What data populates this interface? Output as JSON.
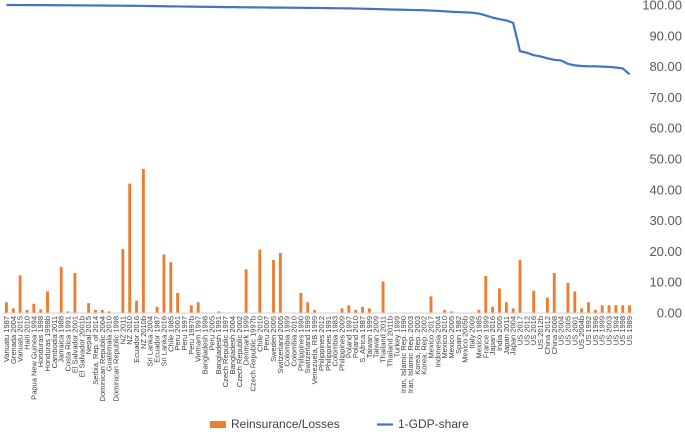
{
  "chart_data": {
    "type": "bar",
    "title": "",
    "xlabel": "",
    "ylabel": "",
    "ylim": [
      0,
      100
    ],
    "yticks": [
      "0.00",
      "10.00",
      "20.00",
      "30.00",
      "40.00",
      "50.00",
      "60.00",
      "70.00",
      "80.00",
      "90.00",
      "100.00"
    ],
    "y_axis_side": "right",
    "grid": false,
    "legend_position": "bottom",
    "series_colors": {
      "bars": "#ED7D31",
      "line": "#4472C4"
    },
    "categories": [
      "Vanuatu 1987",
      "Grenada 2004",
      "Vanuatu 2015",
      "Haiti 2010",
      "Papua New Guinea 1994",
      "Honduras 1998",
      "Honduras 1998b",
      "Cambodia 2011",
      "Jamaica 1988",
      "Costa Rica 1991",
      "El Salvador 2001",
      "El Salvador 2001b",
      "Nepal 2015",
      "Serbia, Rep. of 2014",
      "Dominican Republic 2004",
      "Guatemala 2010",
      "Dominican Republic 1998",
      "NZ 2011",
      "NZ 2010",
      "Ecuador 2016",
      "NZ 2010b",
      "Sri Lanka 2004",
      "Ecuador 1987",
      "Sri Lanka 2016",
      "Chile 1985",
      "Peru 2001",
      "Peru 1997",
      "Peru 1997b",
      "Vietnam 1997",
      "Bangladesh 1998",
      "Peru 2005",
      "Bangladesh 1991",
      "Czech Republic 1997",
      "Bangladesh 2004",
      "Czech Republic 2002",
      "Denmark 1999",
      "Czech Republic 1997b",
      "Chile 2010",
      "Peru 2007",
      "Sweden 2005",
      "Switzerland 2005",
      "Colombia 1999",
      "Colombia 2010",
      "Philippines 1990",
      "Switzerland 1999",
      "Venezuela, RB 1999",
      "Philippines 2012",
      "Philippines 1991",
      "Colombia 1983",
      "Philippines 2009",
      "Poland 1997",
      "Poland 2010",
      "S. Africa 1987",
      "Taiwan 1999",
      "Taiwan 2009",
      "Thailand 2011",
      "Thailand 2011b",
      "Turkey 1999",
      "Iran, Islamic Rep. 1990",
      "Iran, Islamic Rep. 2003",
      "Korea, Rep. 2003",
      "Korea, Rep. 2002",
      "Mexico 2017",
      "Indonesia 2004",
      "Mexico 2010",
      "Mexico 2005",
      "Spain 1982",
      "Mexico 2005b",
      "Italy 2009",
      "Mexico 1985",
      "France 1999",
      "Japan 2016",
      "India 2005",
      "Japan 2011",
      "Japan 2004",
      "US 2017",
      "US 2012",
      "US 2016",
      "US 2012b",
      "China 2012",
      "China 2008",
      "US 2004",
      "US 2005",
      "US 2001",
      "US 2004b",
      "US 1992",
      "US 1996",
      "US 1999",
      "US 2003",
      "US 1994",
      "US 1998",
      "US 1989"
    ],
    "series": [
      {
        "name": "Reinsurance/Losses",
        "type": "bar",
        "values": [
          3.5,
          1.5,
          12.2,
          1,
          3,
          1.2,
          7,
          0,
          15,
          0.5,
          13,
          0,
          3.2,
          1,
          1,
          0.5,
          0,
          20.8,
          42,
          4,
          46.8,
          0,
          2,
          19,
          16.5,
          6.5,
          0,
          2.5,
          3.5,
          0,
          0,
          0.5,
          0,
          0,
          0,
          14.2,
          0,
          20.6,
          0,
          17.2,
          19.5,
          0,
          0,
          6.5,
          3.5,
          1,
          0,
          0,
          0,
          1.5,
          2.5,
          1,
          2,
          1.5,
          0,
          10.2,
          0,
          0,
          0,
          0,
          0,
          0,
          5.4,
          0,
          1,
          0.5,
          0,
          0,
          0,
          1,
          12,
          2,
          8,
          3.5,
          1.5,
          17.2,
          0,
          7.2,
          0,
          5,
          13,
          0,
          9.8,
          7,
          1.5,
          3.5,
          1,
          2.5,
          2.5,
          2.5,
          2.5,
          2.5
        ]
      },
      {
        "name": "1-GDP-share",
        "type": "line",
        "values": [
          99.99,
          99.99,
          99.98,
          99.98,
          99.97,
          99.96,
          99.95,
          99.93,
          99.91,
          99.9,
          99.89,
          99.87,
          99.86,
          99.84,
          99.83,
          99.8,
          99.78,
          99.77,
          99.75,
          99.73,
          99.7,
          99.67,
          99.63,
          99.6,
          99.56,
          99.53,
          99.5,
          99.47,
          99.44,
          99.41,
          99.38,
          99.35,
          99.32,
          99.3,
          99.27,
          99.25,
          99.23,
          99.2,
          99.18,
          99.16,
          99.14,
          99.12,
          99.1,
          99.08,
          99.06,
          99.04,
          99.02,
          98.99,
          98.96,
          98.93,
          98.9,
          98.85,
          98.8,
          98.75,
          98.68,
          98.61,
          98.55,
          98.5,
          98.45,
          98.4,
          98.35,
          98.3,
          98.2,
          98.1,
          97.95,
          97.8,
          97.7,
          97.6,
          97.5,
          97.2,
          96.6,
          95.9,
          95.4,
          95,
          94.2,
          85,
          84.5,
          83.7,
          83.3,
          82.7,
          82.2,
          82,
          80.9,
          80.4,
          80.2,
          80.1,
          80.1,
          80,
          79.9,
          79.7,
          79.4,
          77.5
        ]
      }
    ],
    "legend": [
      "Reinsurance/Losses",
      "1-GDP-share"
    ]
  }
}
